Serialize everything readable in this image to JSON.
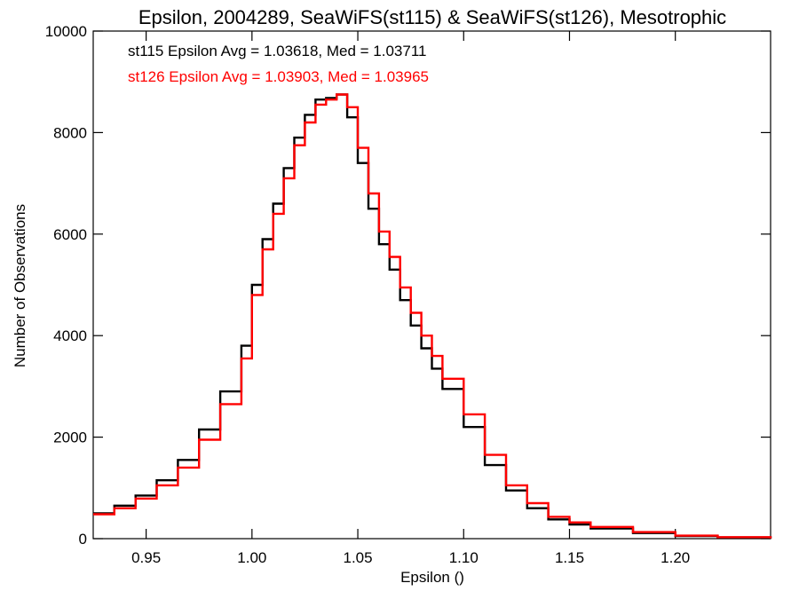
{
  "chart_data": {
    "type": "line",
    "title": "Epsilon, 2004289, SeaWiFS(st115) & SeaWiFS(st126), Mesotrophic",
    "xlabel": "Epsilon ()",
    "ylabel": "Number of Observations",
    "xlim": [
      0.925,
      1.245
    ],
    "ylim": [
      0,
      10000
    ],
    "x_ticks": [
      0.95,
      1.0,
      1.05,
      1.1,
      1.15,
      1.2
    ],
    "x_tick_labels": [
      "0.95",
      "1.00",
      "1.05",
      "1.10",
      "1.15",
      "1.20"
    ],
    "y_ticks": [
      0,
      2000,
      4000,
      6000,
      8000,
      10000
    ],
    "y_tick_labels": [
      "0",
      "2000",
      "4000",
      "6000",
      "8000",
      "10000"
    ],
    "grid": false,
    "annotations": [
      {
        "text": "st115 Epsilon Avg = 1.03618, Med = 1.03711",
        "color": "#000000"
      },
      {
        "text": "st126 Epsilon Avg = 1.03903, Med = 1.03965",
        "color": "#ff0000"
      }
    ],
    "series": [
      {
        "color": "#000000",
        "x": [
          0.925,
          0.935,
          0.945,
          0.955,
          0.965,
          0.975,
          0.985,
          0.995,
          1.0,
          1.005,
          1.01,
          1.015,
          1.02,
          1.025,
          1.03,
          1.035,
          1.04,
          1.045,
          1.05,
          1.055,
          1.06,
          1.065,
          1.07,
          1.075,
          1.08,
          1.085,
          1.09,
          1.1,
          1.11,
          1.12,
          1.13,
          1.14,
          1.15,
          1.16,
          1.18,
          1.2,
          1.22,
          1.245
        ],
        "values": [
          500,
          650,
          850,
          1150,
          1550,
          2150,
          2900,
          3800,
          5000,
          5900,
          6600,
          7300,
          7900,
          8350,
          8650,
          8680,
          8750,
          8300,
          7400,
          6500,
          5800,
          5300,
          4700,
          4200,
          3750,
          3350,
          2950,
          2200,
          1450,
          950,
          600,
          380,
          280,
          200,
          110,
          50,
          25,
          5
        ]
      },
      {
        "color": "#ff0000",
        "x": [
          0.925,
          0.935,
          0.945,
          0.955,
          0.965,
          0.975,
          0.985,
          0.995,
          1.0,
          1.005,
          1.01,
          1.015,
          1.02,
          1.025,
          1.03,
          1.035,
          1.04,
          1.045,
          1.05,
          1.055,
          1.06,
          1.065,
          1.07,
          1.075,
          1.08,
          1.085,
          1.09,
          1.1,
          1.11,
          1.12,
          1.13,
          1.14,
          1.15,
          1.16,
          1.18,
          1.2,
          1.22,
          1.245
        ],
        "values": [
          480,
          600,
          790,
          1050,
          1400,
          1950,
          2650,
          3550,
          4800,
          5700,
          6400,
          7100,
          7750,
          8200,
          8550,
          8650,
          8750,
          8500,
          7700,
          6800,
          6050,
          5550,
          4950,
          4450,
          4000,
          3600,
          3150,
          2450,
          1650,
          1050,
          700,
          430,
          320,
          230,
          130,
          60,
          30,
          5
        ]
      }
    ]
  }
}
